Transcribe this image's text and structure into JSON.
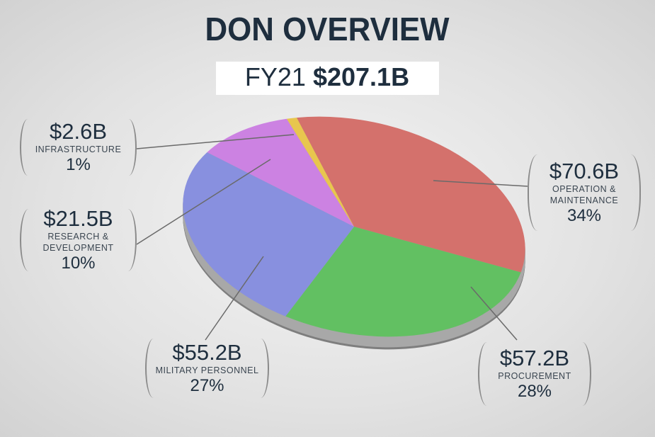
{
  "chart_data": {
    "type": "pie",
    "title": "DON OVERVIEW",
    "subtitle": "FY21",
    "total_label": "$207.1B",
    "categories": [
      "OPERATION & MAINTENANCE",
      "PROCUREMENT",
      "MILITARY PERSONNEL",
      "RESEARCH & DEVELOPMENT",
      "INFRASTRUCTURE"
    ],
    "values": [
      34,
      28,
      27,
      10,
      1
    ],
    "value_labels": [
      "34%",
      "28%",
      "27%",
      "10%",
      "1%"
    ],
    "amount_labels": [
      "$70.6B",
      "$57.2B",
      "$55.2B",
      "$21.5B",
      "$2.6B"
    ],
    "colors": [
      "#d4716c",
      "#62c062",
      "#8890df",
      "#cc82e2",
      "#e8c64e"
    ]
  }
}
